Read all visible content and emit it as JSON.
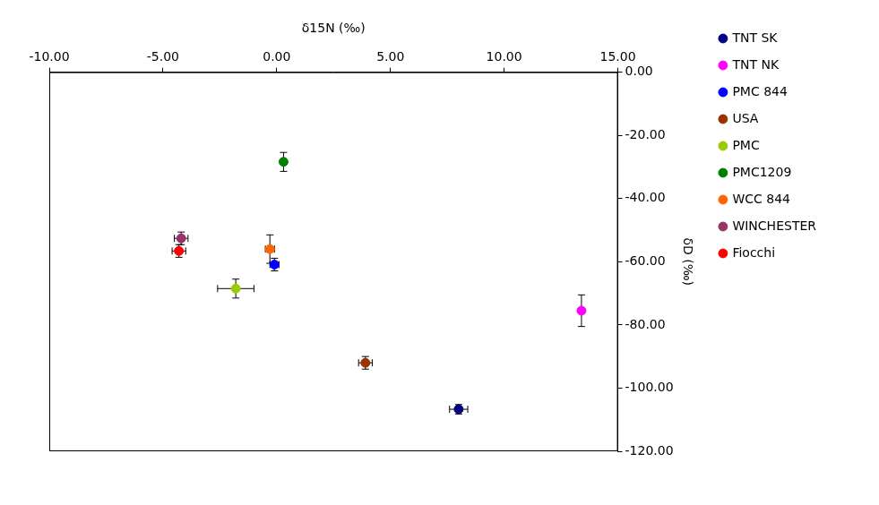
{
  "chart_data": {
    "type": "scatter",
    "x_label": "δ15N (‰)",
    "y_label": "δD (‰)",
    "xlim": [
      -10,
      15
    ],
    "xticks": [
      {
        "value": -10,
        "label": "-10.00"
      },
      {
        "value": -5,
        "label": "-5.00"
      },
      {
        "value": 0,
        "label": "0.00"
      },
      {
        "value": 5,
        "label": "5.00"
      },
      {
        "value": 10,
        "label": "10.00"
      },
      {
        "value": 15,
        "label": "15.00"
      }
    ],
    "ylim": [
      -120,
      0
    ],
    "yticks": [
      {
        "value": 0,
        "label": "0.00"
      },
      {
        "value": -20,
        "label": "-20.00"
      },
      {
        "value": -40,
        "label": "-40.00"
      },
      {
        "value": -60,
        "label": "-60.00"
      },
      {
        "value": -80,
        "label": "-80.00"
      },
      {
        "value": -100,
        "label": "-100.00"
      },
      {
        "value": -120,
        "label": "-120.00"
      }
    ],
    "grid": false,
    "legend": "right",
    "marker": "circle",
    "series": [
      {
        "name": "TNT SK",
        "color": "#000080",
        "x": [
          8.0
        ],
        "values": [
          -106.7
        ],
        "x_error": [
          0.4
        ],
        "y_error": [
          1.5
        ]
      },
      {
        "name": "TNT NK",
        "color": "#ff00ff",
        "x": [
          13.4
        ],
        "values": [
          -75.5
        ],
        "x_error": [
          0.1
        ],
        "y_error": [
          5
        ]
      },
      {
        "name": "PMC 844",
        "color": "#0000ff",
        "x": [
          -0.1
        ],
        "values": [
          -60.9
        ],
        "x_error": [
          0.2
        ],
        "y_error": [
          2
        ]
      },
      {
        "name": "USA",
        "color": "#993300",
        "x": [
          3.9
        ],
        "values": [
          -92
        ],
        "x_error": [
          0.3
        ],
        "y_error": [
          2
        ]
      },
      {
        "name": "PMC",
        "color": "#99cc00",
        "x": [
          -1.8
        ],
        "values": [
          -68.5
        ],
        "x_error": [
          0.8
        ],
        "y_error": [
          3
        ]
      },
      {
        "name": "PMC1209",
        "color": "#008000",
        "x": [
          0.3
        ],
        "values": [
          -28.4
        ],
        "x_error": [
          0.1
        ],
        "y_error": [
          3
        ]
      },
      {
        "name": "WCC 844",
        "color": "#ff6600",
        "x": [
          -0.3
        ],
        "values": [
          -56
        ],
        "x_error": [
          0.2
        ],
        "y_error": [
          4.5
        ]
      },
      {
        "name": "WINCHESTER",
        "color": "#993366",
        "x": [
          -4.2
        ],
        "values": [
          -52.6
        ],
        "x_error": [
          0.3
        ],
        "y_error": [
          2
        ]
      },
      {
        "name": "Fiocchi",
        "color": "#ff0000",
        "x": [
          -4.3
        ],
        "values": [
          -56.6
        ],
        "x_error": [
          0.3
        ],
        "y_error": [
          2
        ]
      }
    ]
  }
}
